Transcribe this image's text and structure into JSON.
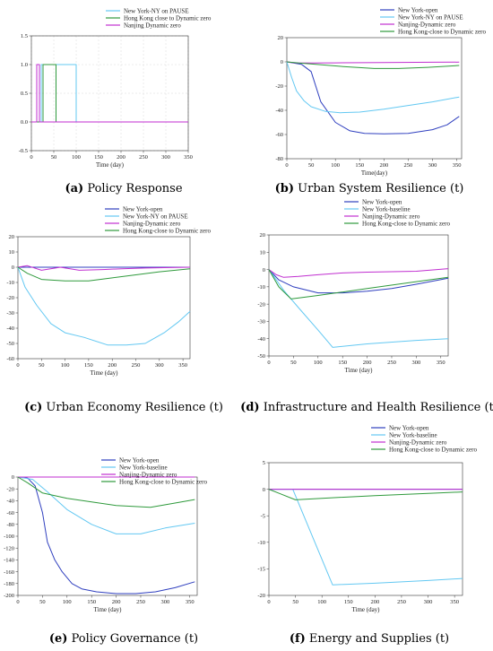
{
  "colors": {
    "ny_open": "#2f3fbf",
    "ny_pause": "#63c8f2",
    "ny_baseline": "#63c8f2",
    "nanjing": "#c02ed0",
    "hk": "#2f9a3c"
  },
  "chart_data": [
    {
      "type": "line",
      "caption_label": "(a)",
      "caption_text": " Policy Response",
      "xlabel": "Time (day)",
      "xlim": [
        0,
        350
      ],
      "ylim": [
        -0.5,
        1.5
      ],
      "xticks": [
        0,
        50,
        100,
        150,
        200,
        250,
        300,
        350
      ],
      "yticks": [
        -0.5,
        0.0,
        0.5,
        1.0,
        1.5
      ],
      "ytick_labels": [
        "-0.5",
        "0.0",
        "0.5",
        "1.0",
        "1.5"
      ],
      "grid": true,
      "legend": "top-left",
      "series": [
        {
          "name": "New York-NY on PAUSE",
          "color_key": "ny_pause",
          "x": [
            0,
            22,
            22,
            100,
            100,
            350
          ],
          "y": [
            0,
            0,
            1,
            1,
            0,
            0
          ]
        },
        {
          "name": "Hong Kong close to Dynamic zero",
          "color_key": "hk",
          "x": [
            0,
            26,
            26,
            55,
            55,
            350
          ],
          "y": [
            0,
            0,
            1,
            1,
            0,
            0
          ]
        },
        {
          "name": "Nanjing Dynamic zero",
          "color_key": "nanjing",
          "x": [
            0,
            12,
            12,
            18,
            18,
            350
          ],
          "y": [
            0,
            0,
            1,
            1,
            0,
            0
          ]
        }
      ]
    },
    {
      "type": "line",
      "caption_label": "(b)",
      "caption_text": " Urban System Resilience (t)",
      "xlabel": "Time(day)",
      "xlim": [
        0,
        360
      ],
      "ylim": [
        -80,
        20
      ],
      "xticks": [
        0,
        50,
        100,
        150,
        200,
        250,
        300,
        350
      ],
      "yticks": [
        -80,
        -60,
        -40,
        -20,
        0,
        20
      ],
      "grid": false,
      "legend": "top-right",
      "series": [
        {
          "name": "New York-open",
          "color_key": "ny_open",
          "x": [
            0,
            30,
            50,
            70,
            100,
            130,
            160,
            200,
            250,
            300,
            330,
            355
          ],
          "y": [
            0,
            -2,
            -8,
            -33,
            -50,
            -57,
            -59,
            -59.5,
            -59,
            -56,
            -52,
            -45
          ]
        },
        {
          "name": "New York-NY on PAUSE",
          "color_key": "ny_pause",
          "x": [
            0,
            10,
            20,
            35,
            50,
            80,
            110,
            150,
            200,
            250,
            300,
            355
          ],
          "y": [
            0,
            -13,
            -24,
            -32,
            -37,
            -41,
            -42,
            -41.5,
            -39,
            -36,
            -33,
            -29
          ]
        },
        {
          "name": "Nanjing-Dynamic zero",
          "color_key": "nanjing",
          "x": [
            0,
            20,
            50,
            100,
            200,
            300,
            355
          ],
          "y": [
            0,
            -1,
            -1,
            -0.8,
            -0.5,
            -0.3,
            -0.2
          ]
        },
        {
          "name": "Hong Kong-close to Dynamic zero",
          "color_key": "hk",
          "x": [
            0,
            25,
            60,
            120,
            180,
            230,
            290,
            355
          ],
          "y": [
            0,
            -1,
            -2,
            -4,
            -5.5,
            -5.5,
            -4.5,
            -3
          ]
        }
      ]
    },
    {
      "type": "line",
      "caption_label": "(c)",
      "caption_text": " Urban Economy Resilience (t)",
      "xlabel": "Time (day)",
      "xlim": [
        0,
        365
      ],
      "ylim": [
        -60,
        20
      ],
      "xticks": [
        0,
        50,
        100,
        150,
        200,
        250,
        300,
        350
      ],
      "yticks": [
        -60,
        -50,
        -40,
        -30,
        -20,
        -10,
        0,
        10,
        20
      ],
      "grid": false,
      "legend": "top-right",
      "series": [
        {
          "name": "New York-open",
          "color_key": "ny_open",
          "x": [
            0,
            100,
            200,
            300,
            365
          ],
          "y": [
            0,
            0,
            0,
            0,
            0
          ]
        },
        {
          "name": "New York-NY on PAUSE",
          "color_key": "ny_pause",
          "x": [
            0,
            15,
            40,
            70,
            100,
            140,
            190,
            230,
            270,
            310,
            340,
            365
          ],
          "y": [
            0,
            -13,
            -25,
            -37,
            -43,
            -46,
            -51,
            -51,
            -50,
            -43,
            -36,
            -29
          ]
        },
        {
          "name": "Nanjing-Dynamic zero",
          "color_key": "nanjing",
          "x": [
            0,
            20,
            50,
            90,
            130,
            180,
            220,
            270,
            365
          ],
          "y": [
            0,
            1,
            -2,
            0,
            -2,
            -1.5,
            -1,
            -0.5,
            0
          ]
        },
        {
          "name": "Hong Kong-close to Dynamic zero",
          "color_key": "hk",
          "x": [
            0,
            20,
            50,
            100,
            150,
            200,
            250,
            300,
            365
          ],
          "y": [
            0,
            -4,
            -8,
            -9,
            -9,
            -7,
            -5,
            -3,
            -1
          ]
        }
      ]
    },
    {
      "type": "line",
      "caption_label": "(d)",
      "caption_text": " Infrastructure and Health Resilience (t)",
      "xlabel": "Time (day)",
      "xlim": [
        0,
        365
      ],
      "ylim": [
        -50,
        20
      ],
      "xticks": [
        0,
        50,
        100,
        150,
        200,
        250,
        300,
        350
      ],
      "yticks": [
        -50,
        -40,
        -30,
        -20,
        -10,
        0,
        10,
        20
      ],
      "grid": false,
      "legend": "top-right",
      "series": [
        {
          "name": "New York-open",
          "color_key": "ny_open",
          "x": [
            0,
            20,
            50,
            100,
            150,
            200,
            250,
            300,
            365
          ],
          "y": [
            0,
            -6,
            -10,
            -13.5,
            -13.5,
            -12.5,
            -11,
            -8.5,
            -5
          ]
        },
        {
          "name": "New York-baseline",
          "color_key": "ny_baseline",
          "x": [
            0,
            30,
            60,
            100,
            130,
            200,
            300,
            365
          ],
          "y": [
            0,
            -12,
            -22,
            -35,
            -45,
            -43,
            -41,
            -40
          ]
        },
        {
          "name": "Nanjing-Dynamic zero",
          "color_key": "nanjing",
          "x": [
            0,
            15,
            30,
            60,
            100,
            150,
            200,
            300,
            365
          ],
          "y": [
            0,
            -3,
            -4.5,
            -4,
            -3,
            -2,
            -1.5,
            -1,
            0.5
          ]
        },
        {
          "name": "Hong Kong-close to Dynamic zero",
          "color_key": "hk",
          "x": [
            0,
            20,
            45,
            100,
            200,
            300,
            365
          ],
          "y": [
            0,
            -10,
            -17,
            -15,
            -11,
            -7,
            -4.5
          ]
        }
      ]
    },
    {
      "type": "line",
      "caption_label": "(e)",
      "caption_text": " Policy Governance (t)",
      "xlabel": "Time (day)",
      "xlim": [
        0,
        365
      ],
      "ylim": [
        -200,
        0
      ],
      "xticks": [
        0,
        50,
        100,
        150,
        200,
        250,
        300,
        350
      ],
      "yticks": [
        -200,
        -180,
        -160,
        -140,
        -120,
        -100,
        -80,
        -60,
        -40,
        -20,
        0
      ],
      "grid": false,
      "legend": "top-right",
      "series": [
        {
          "name": "New York-open",
          "color_key": "ny_open",
          "x": [
            0,
            20,
            35,
            50,
            60,
            75,
            90,
            110,
            130,
            160,
            200,
            240,
            280,
            320,
            360
          ],
          "y": [
            0,
            -2,
            -15,
            -60,
            -110,
            -140,
            -160,
            -180,
            -189,
            -194,
            -197,
            -197,
            -194,
            -187,
            -177
          ]
        },
        {
          "name": "New York-baseline",
          "color_key": "ny_baseline",
          "x": [
            0,
            30,
            60,
            100,
            150,
            200,
            250,
            300,
            360
          ],
          "y": [
            0,
            -4,
            -25,
            -55,
            -80,
            -96,
            -96,
            -86,
            -78
          ]
        },
        {
          "name": "Nanjing-Dynamic zero",
          "color_key": "nanjing",
          "x": [
            0,
            100,
            200,
            300,
            360
          ],
          "y": [
            0,
            0,
            0,
            0,
            0
          ]
        },
        {
          "name": "Hong Kong-close to Dynamic zero",
          "color_key": "hk",
          "x": [
            0,
            20,
            50,
            100,
            150,
            200,
            270,
            320,
            360
          ],
          "y": [
            0,
            -10,
            -27,
            -36,
            -42,
            -48,
            -51,
            -44,
            -38
          ]
        }
      ]
    },
    {
      "type": "line",
      "caption_label": "(f)",
      "caption_text": " Energy and Supplies (t)",
      "xlabel": "Time (day)",
      "xlim": [
        0,
        365
      ],
      "ylim": [
        -20,
        5
      ],
      "xticks": [
        0,
        50,
        100,
        150,
        200,
        250,
        300,
        350
      ],
      "yticks": [
        -20,
        -15,
        -10,
        -5,
        0,
        5
      ],
      "grid": false,
      "legend": "top-right",
      "series": [
        {
          "name": "New York-open",
          "color_key": "ny_open",
          "x": [
            0,
            100,
            200,
            300,
            365
          ],
          "y": [
            0,
            0,
            0,
            0,
            0
          ]
        },
        {
          "name": "New York-baseline",
          "color_key": "ny_baseline",
          "x": [
            0,
            45,
            120,
            200,
            300,
            365
          ],
          "y": [
            0,
            0,
            -18,
            -17.7,
            -17.2,
            -16.8
          ]
        },
        {
          "name": "Nanjing-Dynamic zero",
          "color_key": "nanjing",
          "x": [
            0,
            100,
            200,
            300,
            365
          ],
          "y": [
            0,
            0,
            0,
            0,
            0
          ]
        },
        {
          "name": "Hong Kong-close to Dynamic zero",
          "color_key": "hk",
          "x": [
            0,
            20,
            50,
            100,
            200,
            300,
            365
          ],
          "y": [
            0,
            -0.8,
            -2,
            -1.7,
            -1.2,
            -0.8,
            -0.5
          ]
        }
      ]
    }
  ]
}
